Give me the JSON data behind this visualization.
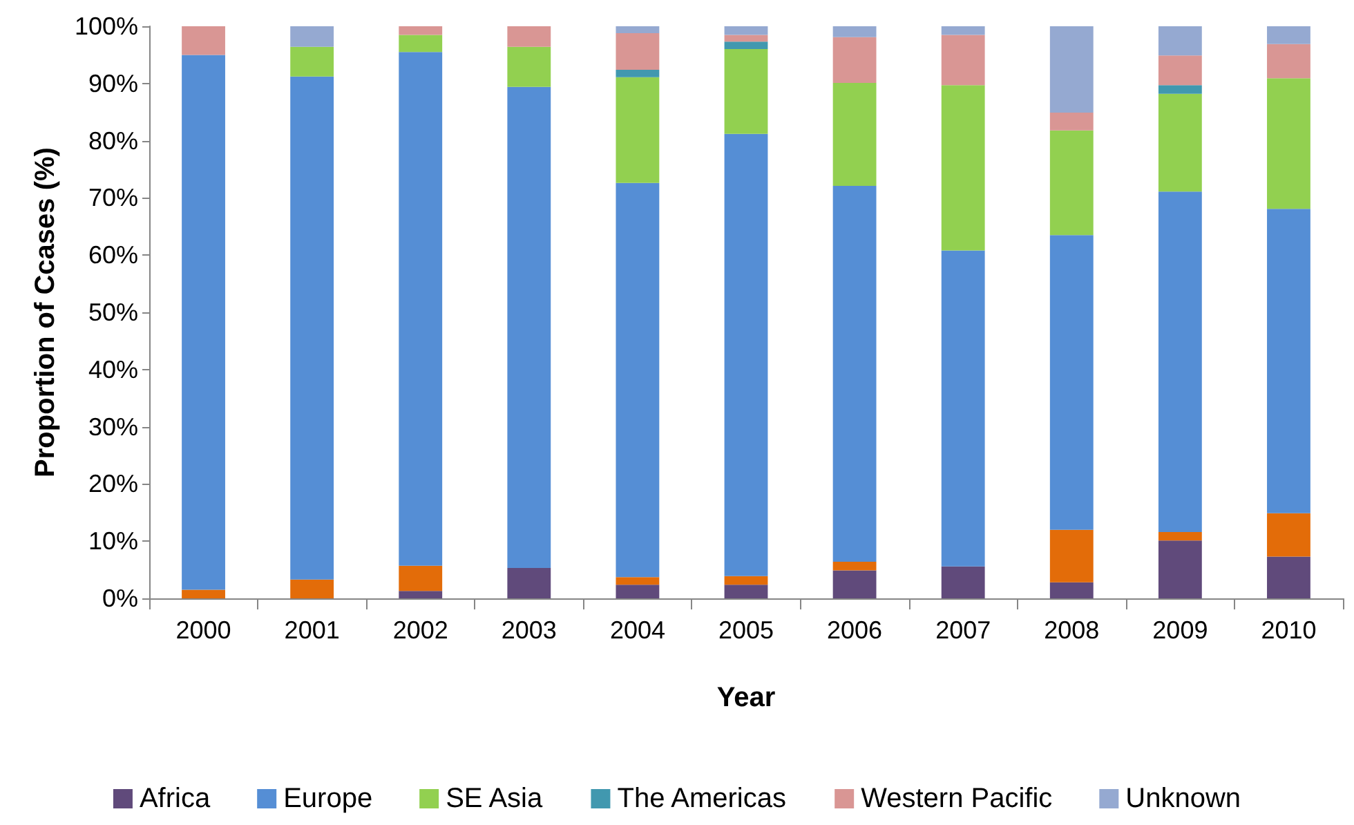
{
  "chart_data": {
    "type": "bar",
    "stacked": true,
    "xlabel": "Year",
    "ylabel": "Proportion of Ccases (%)",
    "categories": [
      "2000",
      "2001",
      "2002",
      "2003",
      "2004",
      "2005",
      "2006",
      "2007",
      "2008",
      "2009",
      "2010"
    ],
    "series": [
      {
        "name": "Africa",
        "color": "#604a7b",
        "values": [
          0,
          0,
          1.3,
          5.3,
          2.4,
          2.4,
          4.9,
          5.6,
          2.8,
          10.1,
          7.3
        ]
      },
      {
        "color": "#e36c09",
        "values": [
          1.5,
          3.3,
          4.4,
          0,
          1.3,
          1.5,
          1.5,
          0,
          9.2,
          1.5,
          7.6
        ]
      },
      {
        "name": "Europe",
        "color": "#558ed5",
        "values": [
          93.5,
          87.9,
          89.8,
          84.1,
          68.9,
          77.3,
          65.7,
          55.2,
          51.5,
          59.5,
          53.2
        ]
      },
      {
        "name": "SE Asia",
        "color": "#92d050",
        "values": [
          0,
          5.2,
          3.0,
          7.0,
          18.5,
          14.8,
          18.0,
          28.9,
          18.3,
          17.1,
          22.8
        ]
      },
      {
        "name": "The Americas",
        "color": "#4198af",
        "values": [
          0,
          0,
          0,
          0,
          1.3,
          1.3,
          0,
          0,
          0,
          1.5,
          0
        ]
      },
      {
        "name": "Western Pacific",
        "color": "#d99694",
        "values": [
          5,
          0,
          1.5,
          3.6,
          6.4,
          1.2,
          8.0,
          8.8,
          3.1,
          5.2,
          6.0
        ]
      },
      {
        "name": "Unknown",
        "color": "#95a9d1",
        "values": [
          0,
          3.6,
          0,
          0,
          1.2,
          1.5,
          1.9,
          1.5,
          15.1,
          5.1,
          3.1
        ]
      }
    ],
    "ylim": [
      0,
      100
    ],
    "yticks": [
      {
        "value": 0,
        "label": "0%"
      },
      {
        "value": 10,
        "label": "10%"
      },
      {
        "value": 20,
        "label": "20%"
      },
      {
        "value": 30,
        "label": "30%"
      },
      {
        "value": 40,
        "label": "40%"
      },
      {
        "value": 50,
        "label": "50%"
      },
      {
        "value": 60,
        "label": "60%"
      },
      {
        "value": 70,
        "label": "70%"
      },
      {
        "value": 80,
        "label": "80%"
      },
      {
        "value": 90,
        "label": "90%"
      },
      {
        "value": 100,
        "label": "100%"
      }
    ],
    "grid": false,
    "legend": "bottom"
  }
}
